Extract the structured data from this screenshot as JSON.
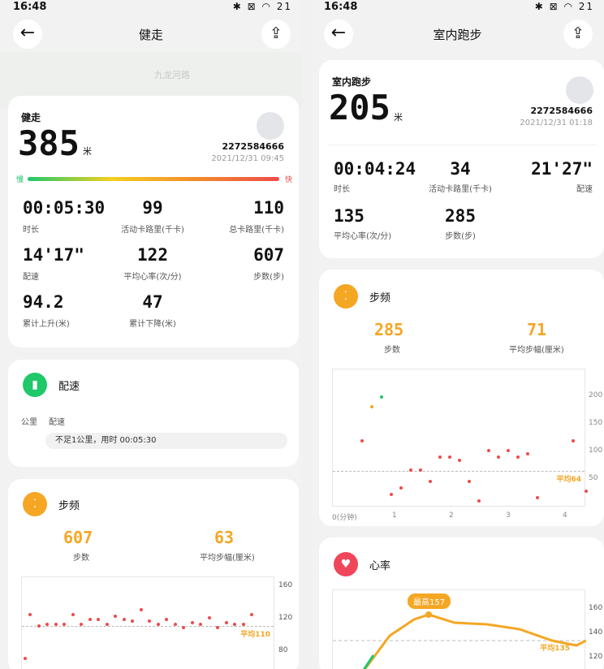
{
  "left": {
    "status_time": "16:48",
    "status_icons": "✱ ⊠ ◠ 21",
    "title": "健走",
    "map_label": "九龙河路",
    "summary": {
      "label": "健走",
      "distance": "385",
      "unit": "米",
      "user_id": "2272584666",
      "datetime": "2021/12/31 09:45",
      "slow": "慢",
      "fast": "快"
    },
    "stats": [
      {
        "v": "00:05:30",
        "l": "时长"
      },
      {
        "v": "99",
        "l": "活动卡路里(千卡)"
      },
      {
        "v": "110",
        "l": "总卡路里(千卡)"
      },
      {
        "v": "14'17\"",
        "l": "配速"
      },
      {
        "v": "122",
        "l": "平均心率(次/分)"
      },
      {
        "v": "607",
        "l": "步数(步)"
      },
      {
        "v": "94.2",
        "l": "累计上升(米)"
      },
      {
        "v": "47",
        "l": "累计下降(米)"
      }
    ],
    "pace": {
      "title": "配速",
      "col_km": "公里",
      "col_pace": "配速",
      "note": "不足1公里，用时 00:05:30"
    },
    "cadence": {
      "title": "步频",
      "steps": "607",
      "steps_label": "步数",
      "stride": "63",
      "stride_label": "平均步幅(厘米)",
      "avg_label": "平均110",
      "yticks": [
        "160",
        "120",
        "80"
      ]
    }
  },
  "right": {
    "status_time": "16:48",
    "status_icons": "✱ ⊠ ◠ 21",
    "title": "室内跑步",
    "summary": {
      "label": "室内跑步",
      "distance": "205",
      "unit": "米",
      "user_id": "2272584666",
      "datetime": "2021/12/31 01:18"
    },
    "stats": [
      {
        "v": "00:04:24",
        "l": "时长"
      },
      {
        "v": "34",
        "l": "活动卡路里(千卡)"
      },
      {
        "v": "21'27\"",
        "l": "配速"
      },
      {
        "v": "135",
        "l": "平均心率(次/分)"
      },
      {
        "v": "285",
        "l": "步数(步)"
      }
    ],
    "cadence": {
      "title": "步频",
      "steps": "285",
      "steps_label": "步数",
      "stride": "71",
      "stride_label": "平均步幅(厘米)",
      "avg_label": "平均64",
      "yticks": [
        "200",
        "150",
        "100",
        "50"
      ],
      "xticks": [
        "0(分钟)",
        "1",
        "2",
        "3",
        "4"
      ]
    },
    "heart": {
      "title": "心率",
      "max_label": "最高157",
      "avg_label": "平均135",
      "yticks": [
        "160",
        "140",
        "120"
      ]
    }
  },
  "colors": {
    "orange": "#f5a623",
    "green": "#1fc86b",
    "red": "#ee4b4b",
    "heart": "#f0455a"
  }
}
